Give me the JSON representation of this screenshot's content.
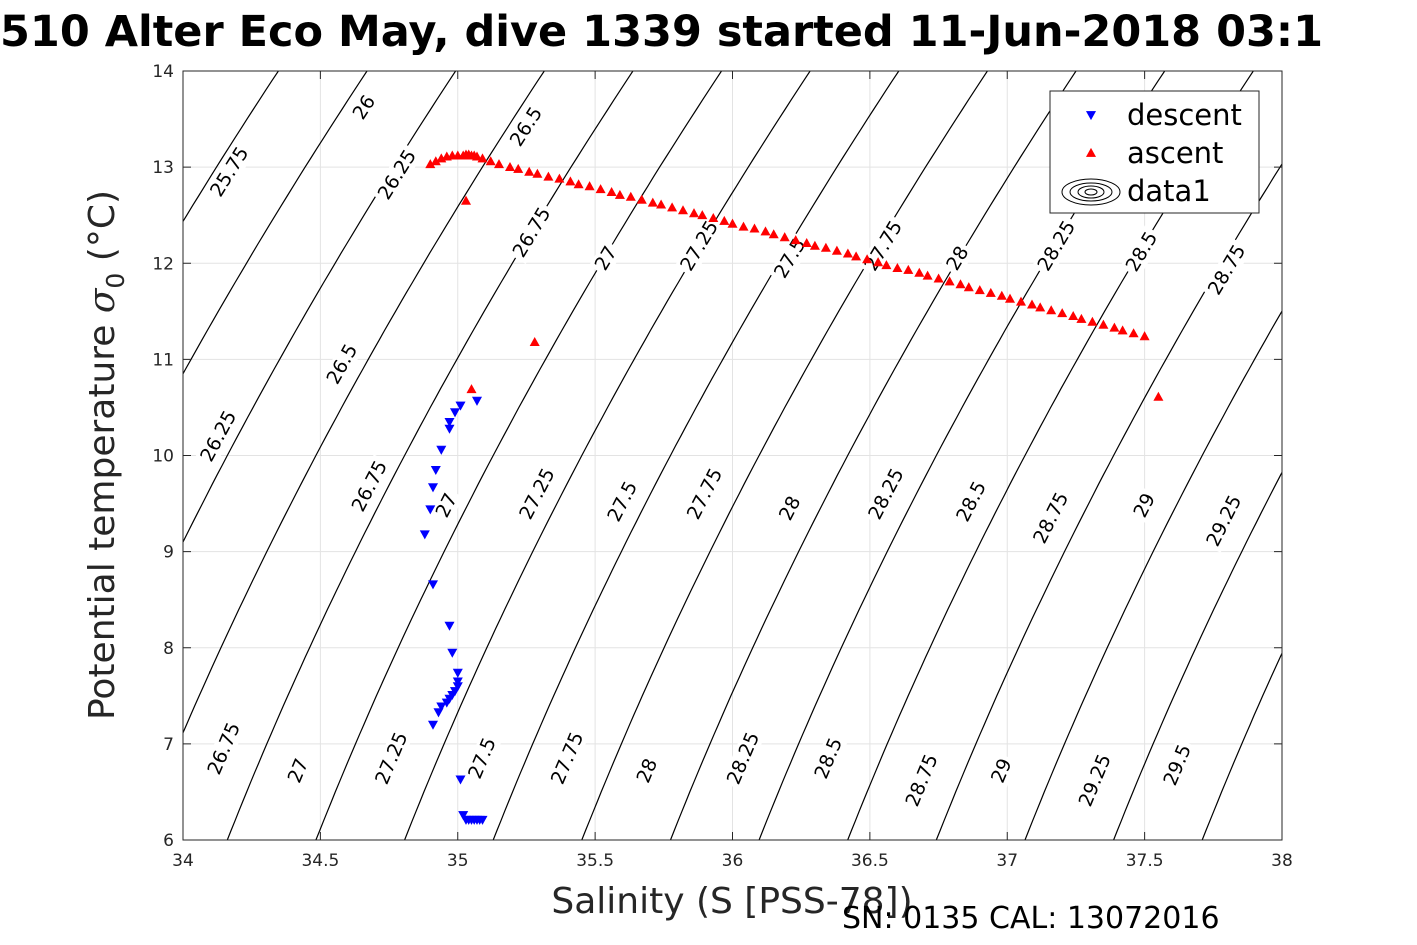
{
  "chart_data": {
    "type": "scatter",
    "title": "510 Alter Eco May, dive 1339 started 11-Jun-2018 03:1",
    "xlabel": "Salinity (S [PSS-78])",
    "ylabel_text": "Potential temperature ",
    "ylabel_sigma": "σ",
    "ylabel_subscript": "0",
    "ylabel_unit": " (°C)",
    "footer": "SN: 0135  CAL: 13072016",
    "xlim": [
      34,
      38
    ],
    "ylim": [
      6,
      14
    ],
    "grid": true,
    "xticks": [
      34,
      34.5,
      35,
      35.5,
      36,
      36.5,
      37,
      37.5,
      38
    ],
    "xtick_labels": [
      "34",
      "34.5",
      "35",
      "35.5",
      "36",
      "36.5",
      "37",
      "37.5",
      "38"
    ],
    "yticks": [
      6,
      7,
      8,
      9,
      10,
      11,
      12,
      13,
      14
    ],
    "ytick_labels": [
      "6",
      "7",
      "8",
      "9",
      "10",
      "11",
      "12",
      "13",
      "14"
    ],
    "legend": {
      "location": "top-right",
      "entries": [
        {
          "label": "descent",
          "marker": "triangle-down",
          "color": "#0000ff"
        },
        {
          "label": "ascent",
          "marker": "triangle-up",
          "color": "#ff0000"
        },
        {
          "label": "data1",
          "marker": "contour",
          "color": "#000000"
        }
      ]
    },
    "contours": {
      "name": "data1",
      "color": "#000000",
      "levels": [
        25.75,
        26,
        26.25,
        26.5,
        26.75,
        27,
        27.25,
        27.5,
        27.75,
        28,
        28.25,
        28.5,
        28.75,
        29,
        29.25,
        29.5
      ],
      "labels": [
        {
          "text": "25.75",
          "s": 34.17,
          "t": 12.95
        },
        {
          "text": "26",
          "s": 34.66,
          "t": 13.62
        },
        {
          "text": "26.25",
          "s": 34.78,
          "t": 12.92
        },
        {
          "text": "26.5",
          "s": 35.25,
          "t": 13.42
        },
        {
          "text": "26.75",
          "s": 35.27,
          "t": 12.32
        },
        {
          "text": "27",
          "s": 35.54,
          "t": 12.05
        },
        {
          "text": "27.25",
          "s": 35.88,
          "t": 12.18
        },
        {
          "text": "27.5",
          "s": 36.21,
          "t": 12.05
        },
        {
          "text": "27.75",
          "s": 36.55,
          "t": 12.18
        },
        {
          "text": "28",
          "s": 36.82,
          "t": 12.05
        },
        {
          "text": "28.25",
          "s": 37.18,
          "t": 12.18
        },
        {
          "text": "28.5",
          "s": 37.49,
          "t": 12.12
        },
        {
          "text": "28.75",
          "s": 37.8,
          "t": 11.93
        },
        {
          "text": "26.5",
          "s": 34.58,
          "t": 10.95
        },
        {
          "text": "26.25",
          "s": 34.13,
          "t": 10.2
        },
        {
          "text": "26.75",
          "s": 34.68,
          "t": 9.68
        },
        {
          "text": "27",
          "s": 34.96,
          "t": 9.48
        },
        {
          "text": "27.25",
          "s": 35.29,
          "t": 9.6
        },
        {
          "text": "27.5",
          "s": 35.6,
          "t": 9.52
        },
        {
          "text": "27.75",
          "s": 35.9,
          "t": 9.6
        },
        {
          "text": "28",
          "s": 36.21,
          "t": 9.45
        },
        {
          "text": "28.25",
          "s": 36.56,
          "t": 9.6
        },
        {
          "text": "28.5",
          "s": 36.87,
          "t": 9.52
        },
        {
          "text": "28.75",
          "s": 37.16,
          "t": 9.35
        },
        {
          "text": "29",
          "s": 37.5,
          "t": 9.48
        },
        {
          "text": "29.25",
          "s": 37.79,
          "t": 9.32
        },
        {
          "text": "26.75",
          "s": 34.15,
          "t": 6.95
        },
        {
          "text": "27",
          "s": 34.42,
          "t": 6.72
        },
        {
          "text": "27.25",
          "s": 34.76,
          "t": 6.85
        },
        {
          "text": "27.5",
          "s": 35.09,
          "t": 6.85
        },
        {
          "text": "27.75",
          "s": 35.4,
          "t": 6.85
        },
        {
          "text": "28",
          "s": 35.69,
          "t": 6.72
        },
        {
          "text": "28.25",
          "s": 36.04,
          "t": 6.85
        },
        {
          "text": "28.5",
          "s": 36.35,
          "t": 6.85
        },
        {
          "text": "28.75",
          "s": 36.69,
          "t": 6.62
        },
        {
          "text": "29",
          "s": 36.98,
          "t": 6.72
        },
        {
          "text": "29.25",
          "s": 37.32,
          "t": 6.62
        },
        {
          "text": "29.5",
          "s": 37.62,
          "t": 6.78
        }
      ]
    },
    "series": [
      {
        "name": "descent",
        "marker": "triangle-down",
        "color": "#0000ff",
        "x": [
          35.07,
          35.01,
          34.99,
          34.97,
          34.97,
          34.94,
          34.92,
          34.91,
          34.9,
          34.88,
          34.91,
          34.97,
          34.98,
          35.0,
          35.0,
          35.0,
          34.99,
          34.98,
          34.97,
          34.96,
          34.94,
          34.93,
          34.91,
          35.01,
          35.02,
          35.03,
          35.04,
          35.05,
          35.06,
          35.07,
          35.08,
          35.09
        ],
        "y": [
          10.57,
          10.52,
          10.45,
          10.35,
          10.28,
          10.06,
          9.85,
          9.67,
          9.44,
          9.18,
          8.66,
          8.23,
          7.95,
          7.74,
          7.65,
          7.6,
          7.55,
          7.51,
          7.47,
          7.43,
          7.39,
          7.33,
          7.2,
          6.63,
          6.26,
          6.21,
          6.21,
          6.21,
          6.21,
          6.21,
          6.21,
          6.21
        ]
      },
      {
        "name": "ascent",
        "marker": "triangle-up",
        "color": "#ff0000",
        "x": [
          35.05,
          35.28,
          35.03,
          34.9,
          34.92,
          34.94,
          34.96,
          34.98,
          35.0,
          35.02,
          35.03,
          35.04,
          35.05,
          35.06,
          35.07,
          35.09,
          35.12,
          35.15,
          35.19,
          35.22,
          35.26,
          35.29,
          35.33,
          35.37,
          35.41,
          35.44,
          35.48,
          35.52,
          35.56,
          35.59,
          35.63,
          35.67,
          35.71,
          35.74,
          35.78,
          35.82,
          35.86,
          35.89,
          35.93,
          35.97,
          36.0,
          36.04,
          36.08,
          36.12,
          36.15,
          36.19,
          36.23,
          36.27,
          36.3,
          36.34,
          36.38,
          36.42,
          36.45,
          36.49,
          36.53,
          36.56,
          36.6,
          36.64,
          36.68,
          36.71,
          36.75,
          36.79,
          36.83,
          36.86,
          36.9,
          36.94,
          36.98,
          37.01,
          37.05,
          37.09,
          37.12,
          37.16,
          37.2,
          37.24,
          37.27,
          37.31,
          37.35,
          37.39,
          37.42,
          37.46,
          37.5,
          37.55
        ],
        "y": [
          10.69,
          11.18,
          12.65,
          13.03,
          13.06,
          13.09,
          13.11,
          13.12,
          13.12,
          13.12,
          13.13,
          13.13,
          13.12,
          13.12,
          13.11,
          13.09,
          13.06,
          13.03,
          13.0,
          12.98,
          12.95,
          12.93,
          12.9,
          12.88,
          12.85,
          12.82,
          12.8,
          12.77,
          12.74,
          12.71,
          12.69,
          12.66,
          12.63,
          12.61,
          12.58,
          12.55,
          12.52,
          12.5,
          12.47,
          12.44,
          12.41,
          12.38,
          12.36,
          12.33,
          12.3,
          12.27,
          12.24,
          12.21,
          12.18,
          12.16,
          12.13,
          12.1,
          12.07,
          12.04,
          12.01,
          11.98,
          11.95,
          11.93,
          11.9,
          11.87,
          11.84,
          11.81,
          11.78,
          11.75,
          11.72,
          11.69,
          11.66,
          11.63,
          11.6,
          11.57,
          11.54,
          11.51,
          11.48,
          11.45,
          11.42,
          11.39,
          11.36,
          11.33,
          11.3,
          11.27,
          11.24,
          10.61
        ]
      }
    ]
  }
}
